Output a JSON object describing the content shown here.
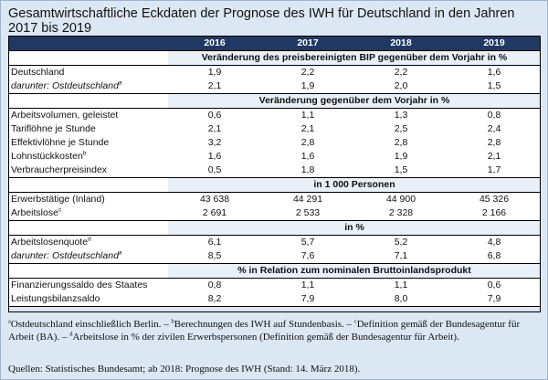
{
  "title": "Gesamtwirtschaftliche Eckdaten der Prognose des IWH für Deutschland in den Jahren 2017 bis 2019",
  "years": [
    "2016",
    "2017",
    "2018",
    "2019"
  ],
  "sections": [
    {
      "header": "Veränderung des preisbereinigten BIP gegenüber dem Vorjahr in %",
      "rows": [
        {
          "label": "Deutschland",
          "sup": "",
          "italic": false,
          "values": [
            "1,9",
            "2,2",
            "2,2",
            "1,6"
          ]
        },
        {
          "label": "darunter: Ostdeutschland",
          "sup": "a",
          "italic": true,
          "values": [
            "2,1",
            "1,9",
            "2,0",
            "1,5"
          ]
        }
      ]
    },
    {
      "header": "Veränderung gegenüber dem Vorjahr in %",
      "rows": [
        {
          "label": "Arbeitsvolumen, geleistet",
          "sup": "",
          "italic": false,
          "values": [
            "0,6",
            "1,1",
            "1,3",
            "0,8"
          ]
        },
        {
          "label": "Tariflöhne je Stunde",
          "sup": "",
          "italic": false,
          "values": [
            "2,1",
            "2,1",
            "2,5",
            "2,4"
          ]
        },
        {
          "label": "Effektivlöhne je Stunde",
          "sup": "",
          "italic": false,
          "values": [
            "3,2",
            "2,8",
            "2,8",
            "2,8"
          ]
        },
        {
          "label": "Lohnstückkosten",
          "sup": "b",
          "italic": false,
          "values": [
            "1,6",
            "1,6",
            "1,9",
            "2,1"
          ]
        },
        {
          "label": "Verbraucherpreisindex",
          "sup": "",
          "italic": false,
          "values": [
            "0,5",
            "1,8",
            "1,5",
            "1,7"
          ]
        }
      ]
    },
    {
      "header": "in 1 000 Personen",
      "rows": [
        {
          "label": "Erwerbstätige (Inland)",
          "sup": "",
          "italic": false,
          "values": [
            "43 638",
            "44 291",
            "44 900",
            "45 326"
          ]
        },
        {
          "label": "Arbeitslose",
          "sup": "c",
          "italic": false,
          "values": [
            "2 691",
            "2 533",
            "2 328",
            "2 166"
          ]
        }
      ]
    },
    {
      "header": "in %",
      "rows": [
        {
          "label": "Arbeitslosenquote",
          "sup": "d",
          "italic": false,
          "values": [
            "6,1",
            "5,7",
            "5,2",
            "4,8"
          ]
        },
        {
          "label": "darunter: Ostdeutschland",
          "sup": "a",
          "italic": true,
          "values": [
            "8,5",
            "7,6",
            "7,1",
            "6,8"
          ]
        }
      ]
    },
    {
      "header": "% in Relation zum nominalen Bruttoinlandsprodukt",
      "rows": [
        {
          "label": "Finanzierungssaldo des Staates",
          "sup": "",
          "italic": false,
          "values": [
            "0,8",
            "1,1",
            "1,1",
            "0,6"
          ]
        },
        {
          "label": "Leistungsbilanzsaldo",
          "sup": "",
          "italic": false,
          "values": [
            "8,2",
            "7,9",
            "8,0",
            "7,9"
          ]
        }
      ]
    }
  ],
  "footnotes": [
    {
      "sup": "a",
      "text": "Ostdeutschland einschließlich Berlin. – "
    },
    {
      "sup": "b",
      "text": "Berechnungen des IWH auf Stundenbasis. – "
    },
    {
      "sup": "c",
      "text": "Definition gemäß der Bundesagentur für Arbeit (BA). – "
    },
    {
      "sup": "d",
      "text": "Arbeitslose in % der zivilen Erwerbspersonen (Definition gemäß der Bundesagentur für Arbeit)."
    }
  ],
  "source": "Quellen: Statistisches Bundesamt; ab 2018: Prognose des IWH (Stand: 14. März 2018)."
}
